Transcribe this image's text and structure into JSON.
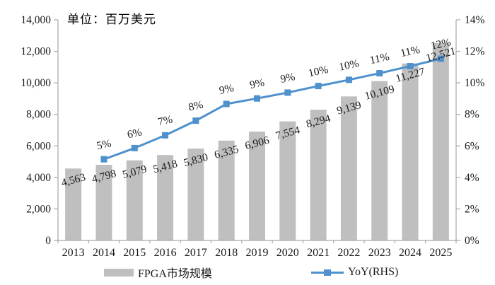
{
  "chart_data": {
    "type": "bar+line",
    "title": "",
    "unit_label": "单位：百万美元",
    "categories": [
      "2013",
      "2014",
      "2015",
      "2016",
      "2017",
      "2018",
      "2019",
      "2020",
      "2021",
      "2022",
      "2023",
      "2024",
      "2025"
    ],
    "series": [
      {
        "name": "FPGA市场规模",
        "type": "bar",
        "axis": "left",
        "color": "#BFBFBF",
        "values": [
          4563,
          4798,
          5079,
          5418,
          5830,
          6335,
          6906,
          7554,
          8294,
          9139,
          10109,
          11227,
          12521
        ],
        "labels": [
          "4,563",
          "4,798",
          "5,079",
          "5,418",
          "5,830",
          "6,335",
          "6,906",
          "7,554",
          "8,294",
          "9,139",
          "10,109",
          "11,227",
          "12,521"
        ]
      },
      {
        "name": "YoY(RHS)",
        "type": "line",
        "axis": "right",
        "color": "#4E91CD",
        "values": [
          null,
          5.15,
          5.86,
          6.67,
          7.6,
          8.66,
          9.01,
          9.38,
          9.8,
          10.19,
          10.61,
          11.06,
          11.53
        ],
        "labels": [
          null,
          "5%",
          "6%",
          "7%",
          "8%",
          "9%",
          "9%",
          "9%",
          "10%",
          "10%",
          "11%",
          "11%",
          "12%"
        ]
      }
    ],
    "left_axis": {
      "min": 0,
      "max": 14000,
      "step": 2000,
      "tick_labels": [
        "0",
        "2,000",
        "4,000",
        "6,000",
        "8,000",
        "10,000",
        "12,000",
        "14,000"
      ]
    },
    "right_axis": {
      "min": 0,
      "max": 14,
      "step": 2,
      "tick_labels": [
        "0%",
        "2%",
        "4%",
        "6%",
        "8%",
        "10%",
        "12%",
        "14%"
      ]
    },
    "grid": "off",
    "legend_position": "bottom",
    "legend": {
      "items": [
        {
          "label": "FPGA市场规模",
          "marker": "bar",
          "color": "#BFBFBF"
        },
        {
          "label": "YoY(RHS)",
          "marker": "line-square",
          "color": "#4E91CD"
        }
      ]
    },
    "colors": {
      "bar": "#BFBFBF",
      "line": "#4E91CD",
      "axis": "#A6A6A6",
      "text": "#1a1a1a"
    }
  }
}
